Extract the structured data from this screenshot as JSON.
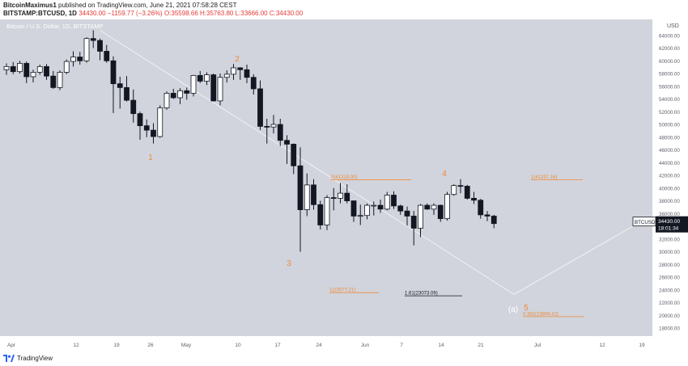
{
  "header": {
    "line1_user": "BitcoinMaximus1",
    "line1_rest": " published on TradingView.com, June 21, 2021 07:58:28 CEST",
    "symbol": "BITSTAMP:BTCUSD, 1D",
    "price": "34430.00",
    "change": "−1159.77 (−3.26%)",
    "ohlc": "O:35598.66 H:35763.80 L:33666.00 C:34430.00"
  },
  "chart_title": "Bitcoin / U.S. Dollar, 1D, BITSTAMP",
  "currency": "USD",
  "footer": {
    "logo_text": "TradingView"
  },
  "colors": {
    "background": "#d1d4dc",
    "up": "#ffffff",
    "down": "#131722",
    "orange": "#ef8a3a",
    "line": "#f0f1f4"
  },
  "price_tag": {
    "label": "BTCUSD",
    "price": "34430.00",
    "timer": "18:01:34"
  },
  "chart_data": {
    "type": "candlestick",
    "title": "Bitcoin / U.S. Dollar, 1D, BITSTAMP",
    "ylim": [
      17000,
      66000
    ],
    "y_ticks": [
      64000,
      62000,
      60000,
      58000,
      56000,
      54000,
      52000,
      50000,
      48000,
      46000,
      44000,
      42000,
      40000,
      38000,
      36000,
      32000,
      30000,
      28000,
      26000,
      24000,
      22000,
      20000,
      18000
    ],
    "x_ticks": [
      "Apr",
      "12",
      "19",
      "26",
      "May",
      "10",
      "17",
      "24",
      "Jun",
      "7",
      "14",
      "21",
      "Jul",
      "12",
      "19"
    ],
    "candles": [
      [
        58600,
        59600,
        57800,
        59100
      ],
      [
        59100,
        59800,
        57900,
        58300
      ],
      [
        58300,
        60000,
        58000,
        59600
      ],
      [
        59600,
        59900,
        56500,
        57500
      ],
      [
        57500,
        58600,
        56600,
        58200
      ],
      [
        58200,
        59400,
        57800,
        59100
      ],
      [
        59100,
        59500,
        57000,
        57600
      ],
      [
        57600,
        58400,
        55600,
        55800
      ],
      [
        55800,
        58500,
        55400,
        58200
      ],
      [
        58200,
        60200,
        57900,
        59900
      ],
      [
        59900,
        61500,
        59100,
        60600
      ],
      [
        60600,
        61400,
        59400,
        60000
      ],
      [
        60000,
        63700,
        59700,
        63500
      ],
      [
        63500,
        64800,
        62000,
        63200
      ],
      [
        63200,
        63500,
        60100,
        61500
      ],
      [
        61500,
        62500,
        59700,
        60000
      ],
      [
        60000,
        60700,
        51800,
        56400
      ],
      [
        56400,
        57500,
        52500,
        55800
      ],
      [
        55800,
        57600,
        53600,
        53800
      ],
      [
        53800,
        55500,
        50300,
        51700
      ],
      [
        51700,
        52000,
        47600,
        49800
      ],
      [
        49800,
        50800,
        48000,
        49100
      ],
      [
        49100,
        50200,
        47000,
        48100
      ],
      [
        48100,
        53000,
        47900,
        52600
      ],
      [
        52600,
        55200,
        52300,
        54900
      ],
      [
        54900,
        55600,
        54000,
        54200
      ],
      [
        54200,
        55700,
        53200,
        55300
      ],
      [
        55300,
        55800,
        53900,
        54900
      ],
      [
        54900,
        57800,
        54400,
        57700
      ],
      [
        57700,
        58400,
        56500,
        56800
      ],
      [
        56800,
        58200,
        56200,
        57800
      ],
      [
        57800,
        58000,
        53600,
        53700
      ],
      [
        53700,
        58000,
        53000,
        57400
      ],
      [
        57400,
        58500,
        56600,
        57900
      ],
      [
        57900,
        59500,
        57000,
        58900
      ],
      [
        58900,
        59000,
        57000,
        58600
      ],
      [
        58600,
        59400,
        56500,
        57400
      ],
      [
        57400,
        57900,
        54700,
        55600
      ],
      [
        55600,
        56900,
        49100,
        49700
      ],
      [
        49700,
        50900,
        47000,
        49600
      ],
      [
        49600,
        51500,
        48600,
        50000
      ],
      [
        50000,
        50900,
        46600,
        47500
      ],
      [
        47500,
        48300,
        43800,
        46900
      ],
      [
        46900,
        47000,
        42200,
        43500
      ],
      [
        43500,
        46400,
        30000,
        36600
      ],
      [
        36600,
        42300,
        35600,
        40500
      ],
      [
        40500,
        41400,
        36600,
        37400
      ],
      [
        37400,
        38000,
        33500,
        34200
      ],
      [
        34200,
        38900,
        33400,
        38500
      ],
      [
        38500,
        40000,
        36500,
        38400
      ],
      [
        38400,
        40800,
        37600,
        39200
      ],
      [
        39200,
        40600,
        37600,
        38000
      ],
      [
        38000,
        38000,
        34700,
        35600
      ],
      [
        35600,
        37400,
        34200,
        35700
      ],
      [
        35700,
        37600,
        35100,
        37300
      ],
      [
        37300,
        37900,
        35700,
        37300
      ],
      [
        37300,
        38200,
        36100,
        36700
      ],
      [
        36700,
        39400,
        36500,
        38900
      ],
      [
        38900,
        39500,
        36700,
        37200
      ],
      [
        37200,
        37400,
        35800,
        36400
      ],
      [
        36400,
        37100,
        34100,
        35600
      ],
      [
        35600,
        36400,
        31000,
        33700
      ],
      [
        33700,
        37500,
        32300,
        37300
      ],
      [
        37300,
        37600,
        36600,
        36700
      ],
      [
        36700,
        37600,
        35800,
        37300
      ],
      [
        37300,
        37400,
        34700,
        35200
      ],
      [
        35200,
        39400,
        34900,
        39000
      ],
      [
        39000,
        40600,
        38800,
        40400
      ],
      [
        40400,
        41400,
        39200,
        40300
      ],
      [
        40300,
        40500,
        38200,
        38400
      ],
      [
        38400,
        39400,
        37500,
        38100
      ],
      [
        38100,
        38300,
        35200,
        35800
      ],
      [
        35800,
        36400,
        34800,
        35600
      ],
      [
        35600,
        35800,
        33700,
        34430
      ]
    ],
    "annotations": [
      {
        "text": "1",
        "color": "orange"
      },
      {
        "text": "2",
        "color": "orange"
      },
      {
        "text": "3",
        "color": "orange"
      },
      {
        "text": "4",
        "color": "orange"
      },
      {
        "text": "5",
        "color": "orange"
      },
      {
        "text": "(a)",
        "color": "white"
      }
    ],
    "fib_labels": [
      {
        "text": "0(41319.00)",
        "price": 41319
      },
      {
        "text": "1(41297.16)",
        "price": 41297.16
      },
      {
        "text": "1(23577.21)",
        "price": 23577.21
      },
      {
        "text": "1.61(23073.09)",
        "price": 23073.09
      },
      {
        "text": "0.382(19806.42)",
        "price": 19806.42
      }
    ],
    "trend_line": [
      [
        64800,
        0
      ],
      [
        23000,
        1
      ]
    ]
  }
}
